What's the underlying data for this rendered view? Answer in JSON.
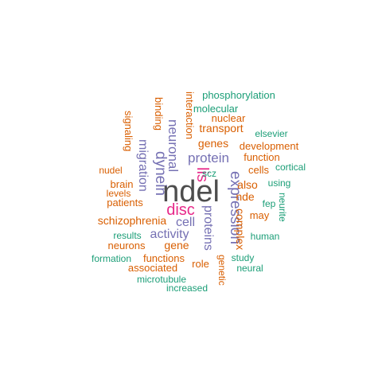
{
  "colors": {
    "gray": "#4d4d4d",
    "pink": "#e7298a",
    "purple": "#7570b3",
    "orange": "#d95f02",
    "teal": "#1b9e77"
  },
  "words": [
    {
      "text": "ndel",
      "color": "gray"
    },
    {
      "text": "disc",
      "color": "pink"
    },
    {
      "text": "lis",
      "color": "pink"
    },
    {
      "text": "expression",
      "color": "purple"
    },
    {
      "text": "dynein",
      "color": "purple"
    },
    {
      "text": "neuronal",
      "color": "purple"
    },
    {
      "text": "protein",
      "color": "purple"
    },
    {
      "text": "migration",
      "color": "purple"
    },
    {
      "text": "proteins",
      "color": "purple"
    },
    {
      "text": "activity",
      "color": "purple"
    },
    {
      "text": "cell",
      "color": "purple"
    },
    {
      "text": "schizophrenia",
      "color": "orange"
    },
    {
      "text": "complex",
      "color": "orange"
    },
    {
      "text": "genes",
      "color": "orange"
    },
    {
      "text": "transport",
      "color": "orange"
    },
    {
      "text": "nuclear",
      "color": "orange"
    },
    {
      "text": "interaction",
      "color": "orange"
    },
    {
      "text": "binding",
      "color": "orange"
    },
    {
      "text": "signaling",
      "color": "orange"
    },
    {
      "text": "development",
      "color": "orange"
    },
    {
      "text": "function",
      "color": "orange"
    },
    {
      "text": "cells",
      "color": "orange"
    },
    {
      "text": "also",
      "color": "orange"
    },
    {
      "text": "nde",
      "color": "orange"
    },
    {
      "text": "may",
      "color": "orange"
    },
    {
      "text": "nudel",
      "color": "orange"
    },
    {
      "text": "brain",
      "color": "orange"
    },
    {
      "text": "levels",
      "color": "orange"
    },
    {
      "text": "patients",
      "color": "orange"
    },
    {
      "text": "neurons",
      "color": "orange"
    },
    {
      "text": "gene",
      "color": "orange"
    },
    {
      "text": "functions",
      "color": "orange"
    },
    {
      "text": "associated",
      "color": "orange"
    },
    {
      "text": "role",
      "color": "orange"
    },
    {
      "text": "genetic",
      "color": "orange"
    },
    {
      "text": "phosphorylation",
      "color": "teal"
    },
    {
      "text": "molecular",
      "color": "teal"
    },
    {
      "text": "elsevier",
      "color": "teal"
    },
    {
      "text": "cortical",
      "color": "teal"
    },
    {
      "text": "scz",
      "color": "teal"
    },
    {
      "text": "using",
      "color": "teal"
    },
    {
      "text": "fep",
      "color": "teal"
    },
    {
      "text": "neurite",
      "color": "teal"
    },
    {
      "text": "human",
      "color": "teal"
    },
    {
      "text": "results",
      "color": "teal"
    },
    {
      "text": "formation",
      "color": "teal"
    },
    {
      "text": "study",
      "color": "teal"
    },
    {
      "text": "neural",
      "color": "teal"
    },
    {
      "text": "microtubule",
      "color": "teal"
    },
    {
      "text": "increased",
      "color": "teal"
    }
  ]
}
